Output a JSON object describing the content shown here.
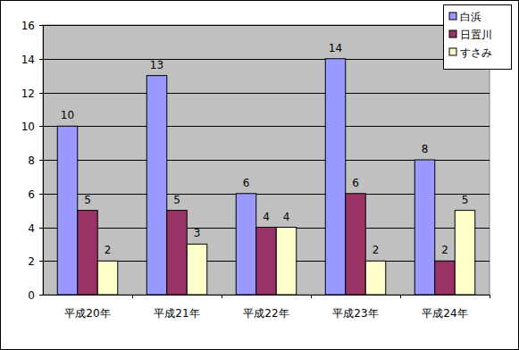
{
  "chart_data": {
    "type": "bar",
    "categories": [
      "平成20年",
      "平成21年",
      "平成22年",
      "平成23年",
      "平成24年"
    ],
    "series": [
      {
        "name": "白浜",
        "color": "#9999ff",
        "values": [
          10,
          13,
          6,
          14,
          8
        ]
      },
      {
        "name": "日置川",
        "color": "#993366",
        "values": [
          5,
          5,
          4,
          6,
          2
        ]
      },
      {
        "name": "すさみ",
        "color": "#ffffcc",
        "values": [
          2,
          3,
          4,
          2,
          5
        ]
      }
    ],
    "ylim": [
      0,
      16
    ],
    "yticks": [
      0,
      2,
      4,
      6,
      8,
      10,
      12,
      14,
      16
    ],
    "grid": true,
    "legend": "upper right",
    "data_labels": true
  }
}
